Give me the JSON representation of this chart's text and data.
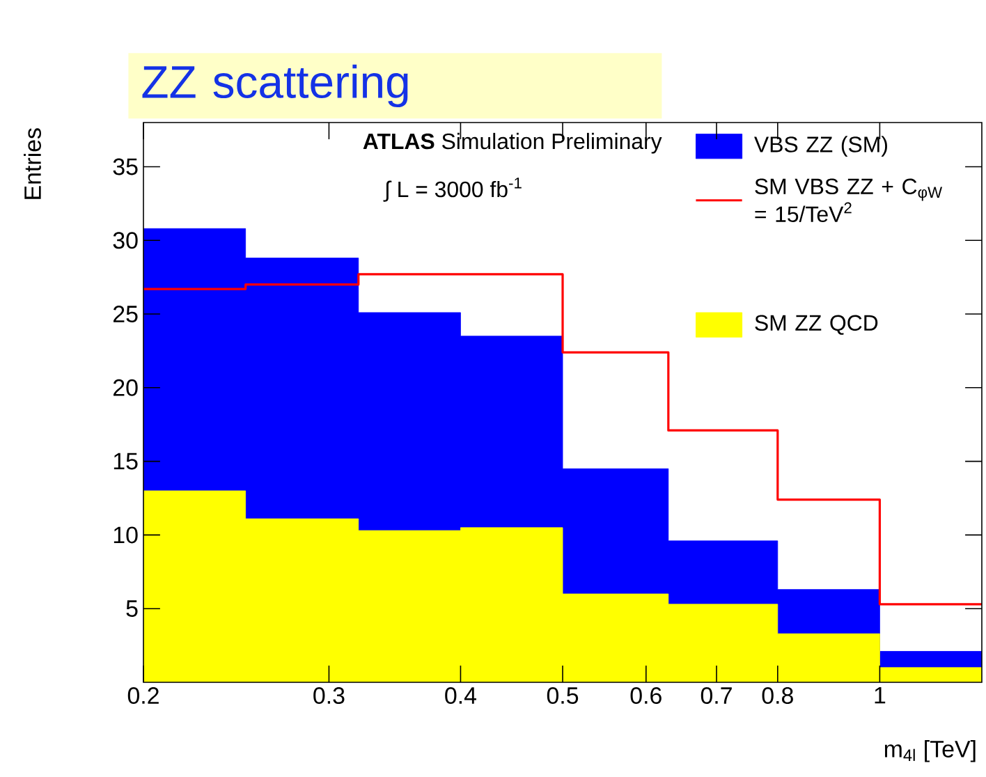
{
  "chart_data": {
    "type": "histogram",
    "title": "ZZ scattering",
    "xlabel": "m$_{4l}$ [TeV]",
    "ylabel": "Entries",
    "annotations": [
      "**ATLAS** Simulation Preliminary",
      "∫ L = 3000 fb$^{-1}$"
    ],
    "bins": [
      0.2,
      0.25,
      0.32,
      0.4,
      0.5,
      0.63,
      0.8,
      1.0,
      1.25
    ],
    "series": [
      {
        "name": "VBS ZZ (SM)",
        "color": "#0000ff",
        "values": [
          30.8,
          28.8,
          25.1,
          23.5,
          14.5,
          9.6,
          6.3,
          2.1
        ]
      },
      {
        "name": "SM VBS ZZ + C$_{φW}$ = 15/TeV$^{2}$",
        "type": "step",
        "color": "#ff0000",
        "x": [
          0.2,
          0.25,
          0.32,
          0.4,
          0.5,
          0.63,
          0.8,
          1.0,
          1.25
        ],
        "values": [
          26.7,
          27.0,
          27.7,
          27.7,
          22.4,
          17.1,
          12.4,
          5.3,
          5.3
        ]
      },
      {
        "name": "SM ZZ QCD",
        "color": "#ffff00",
        "values": [
          13.0,
          11.1,
          10.3,
          10.5,
          6.0,
          5.3,
          3.3,
          1.0
        ]
      }
    ],
    "xlim": [
      0.2,
      1.25
    ],
    "ylim": [
      0,
      38
    ],
    "xticks": [
      0.2,
      0.3,
      0.4,
      0.5,
      0.6,
      0.7,
      0.8,
      1
    ],
    "yticks": [
      5,
      10,
      15,
      20,
      25,
      30,
      35
    ],
    "log": "x",
    "legend": "top right"
  }
}
